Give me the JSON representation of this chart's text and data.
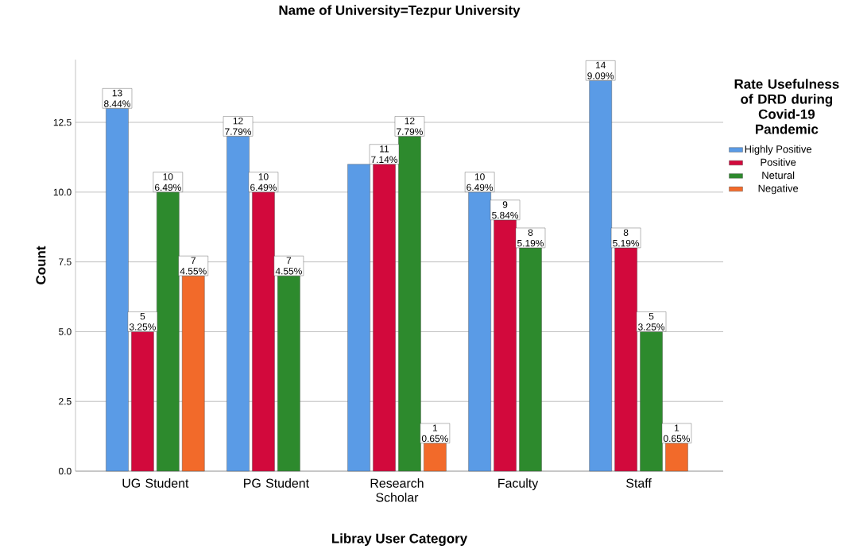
{
  "chart_data": {
    "type": "bar",
    "title": "Name of University=Tezpur University",
    "xlabel": "Libray User Category",
    "ylabel": "Count",
    "legend_title": "Rate Usefulness of DRD during Covid-19 Pandemic",
    "categories": [
      "UG Student",
      "PG Student",
      "Research Scholar",
      "Faculty",
      "Staff"
    ],
    "series": [
      {
        "name": "Highly Positive",
        "color": "#5a9be6",
        "values": [
          13,
          12,
          11,
          10,
          14
        ],
        "value_labels": [
          "13 8.44%",
          "12 7.79%",
          null,
          "10 6.49%",
          "14 9.09%"
        ]
      },
      {
        "name": "Positive",
        "color": "#d2093c",
        "values": [
          5,
          10,
          11,
          9,
          8
        ],
        "value_labels": [
          "5 3.25%",
          "10 6.49%",
          "11 7.14%",
          "9 5.84%",
          "8 5.19%"
        ]
      },
      {
        "name": "Netural",
        "color": "#2d8a2d",
        "values": [
          10,
          7,
          12,
          8,
          5
        ],
        "value_labels": [
          "10 6.49%",
          "7 4.55%",
          "12 7.79%",
          "8 5.19%",
          "5 3.25%"
        ]
      },
      {
        "name": "Negative",
        "color": "#f26a2a",
        "values": [
          7,
          null,
          1,
          null,
          1
        ],
        "value_labels": [
          "7 4.55%",
          null,
          "1 0.65%",
          null,
          "1 0.65%"
        ]
      }
    ],
    "ylim": [
      0,
      14.75
    ],
    "yticks": [
      {
        "value": 0,
        "label": "0.0"
      },
      {
        "value": 2.5,
        "label": "2.5"
      },
      {
        "value": 5,
        "label": "5.0"
      },
      {
        "value": 7.5,
        "label": "7.5"
      },
      {
        "value": 10,
        "label": "10.0"
      },
      {
        "value": 12.5,
        "label": "12.5"
      }
    ],
    "grid": "y",
    "legend": "right"
  }
}
